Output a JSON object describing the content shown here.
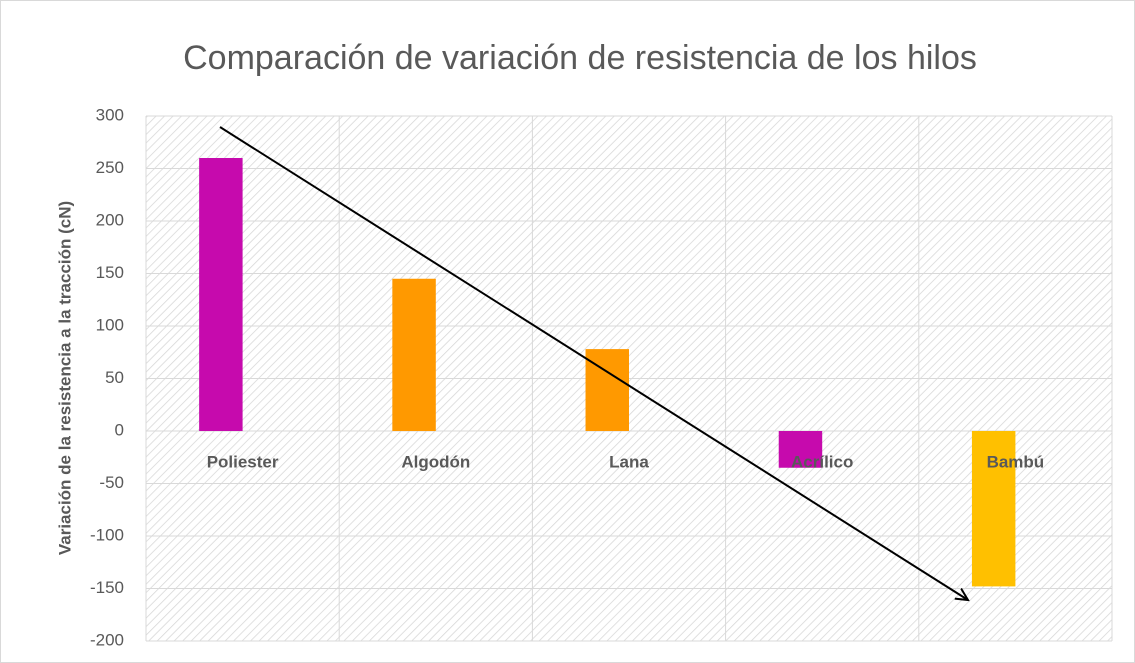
{
  "chart_data": {
    "type": "bar",
    "title": "Comparación de variación de resistencia de los hilos",
    "y_label": "Variación de la resistencia a la tracción (cN)",
    "categories": [
      "Poliester",
      "Algodón",
      "Lana",
      "Acrílico",
      "Bambú"
    ],
    "values": [
      260,
      145,
      78,
      -35,
      -148
    ],
    "colors": [
      "#c60aad",
      "#ff9900",
      "#ff9900",
      "#c60aad",
      "#ffc000"
    ],
    "ylim": [
      -200,
      300
    ],
    "yticks": [
      -200,
      -150,
      -100,
      -50,
      0,
      50,
      100,
      150,
      200,
      250,
      300
    ],
    "grid": true
  }
}
